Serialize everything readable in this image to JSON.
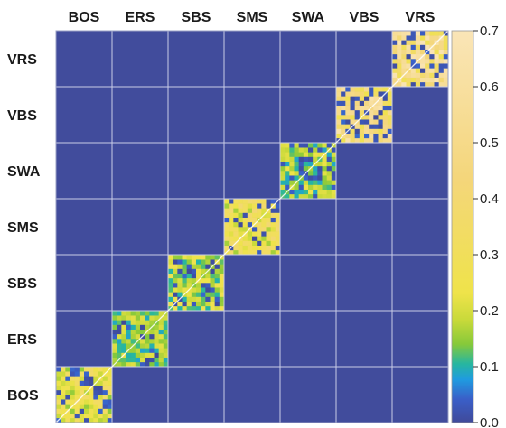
{
  "chart_data": {
    "type": "heatmap",
    "title": "",
    "xlabel": "",
    "ylabel": "",
    "categories_x": [
      "BOS",
      "ERS",
      "SBS",
      "SMS",
      "SWA",
      "VBS",
      "VRS"
    ],
    "categories_y_bottom_to_top": [
      "BOS",
      "ERS",
      "SBS",
      "SMS",
      "SWA",
      "VBS",
      "VRS"
    ],
    "block_order": [
      "BOS",
      "ERS",
      "SBS",
      "SMS",
      "SWA",
      "VBS",
      "VRS"
    ],
    "blocks": [
      {
        "group": "BOS",
        "within_mean": 0.25
      },
      {
        "group": "ERS",
        "within_mean": 0.15
      },
      {
        "group": "SBS",
        "within_mean": 0.18
      },
      {
        "group": "SMS",
        "within_mean": 0.28
      },
      {
        "group": "SWA",
        "within_mean": 0.16
      },
      {
        "group": "VBS",
        "within_mean": 0.45
      },
      {
        "group": "VRS",
        "within_mean": 0.48
      }
    ],
    "between_group_value": 0.0,
    "diagonal_value": 0.7,
    "colorbar": {
      "min": 0.0,
      "max": 0.7,
      "ticks": [
        "0.0",
        "0.1",
        "0.2",
        "0.3",
        "0.4",
        "0.5",
        "0.6",
        "0.7"
      ],
      "colormap": [
        "#404a9a",
        "#3a5fc8",
        "#1f9be0",
        "#27b6a0",
        "#86c93a",
        "#c7d93a",
        "#efe34a",
        "#f4d67a",
        "#fae5b7"
      ]
    },
    "grid": true,
    "legend": "right"
  }
}
